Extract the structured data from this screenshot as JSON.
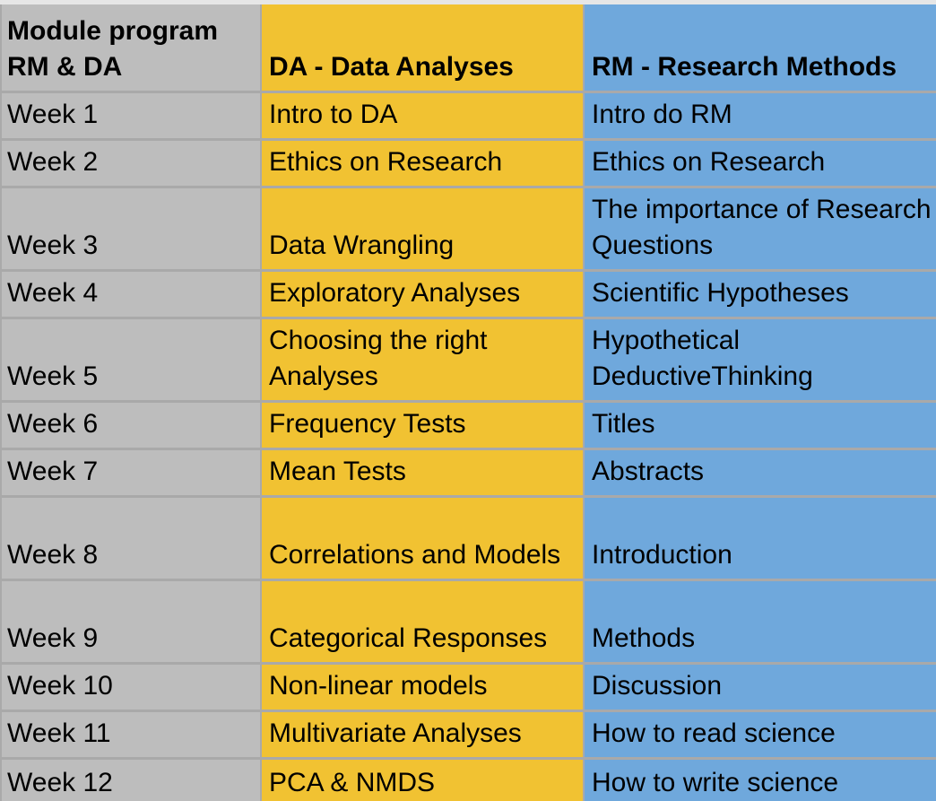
{
  "header": {
    "week_col": "Module program RM & DA",
    "da_col": "DA - Data Analyses",
    "rm_col": "RM - Research Methods"
  },
  "rows": [
    {
      "week": "Week 1",
      "da": "Intro to DA",
      "rm": "Intro do RM"
    },
    {
      "week": "Week 2",
      "da": "Ethics on Research",
      "rm": "Ethics on Research"
    },
    {
      "week": "Week 3",
      "da": "Data Wrangling",
      "rm": "The importance of Research Questions"
    },
    {
      "week": "Week 4",
      "da": "Exploratory Analyses",
      "rm": "Scientific Hypotheses"
    },
    {
      "week": "Week 5",
      "da": "Choosing the right Analyses",
      "rm": "Hypothetical DeductiveThinking"
    },
    {
      "week": "Week 6",
      "da": "Frequency Tests",
      "rm": "Titles"
    },
    {
      "week": "Week 7",
      "da": "Mean Tests",
      "rm": "Abstracts"
    },
    {
      "week": "Week 8",
      "da": "Correlations and Models",
      "rm": "Introduction"
    },
    {
      "week": "Week 9",
      "da": "Categorical Responses",
      "rm": "Methods"
    },
    {
      "week": "Week 10",
      "da": "Non-linear models",
      "rm": "Discussion"
    },
    {
      "week": "Week 11",
      "da": "Multivariate Analyses",
      "rm": "How to read science"
    },
    {
      "week": "Week 12",
      "da": "PCA & NMDS",
      "rm": "How to write science"
    }
  ],
  "colors": {
    "week_column": "#bdbdbd",
    "da_column": "#f1c232",
    "rm_column": "#6fa8dc",
    "gridline": "#a9a9a9"
  }
}
